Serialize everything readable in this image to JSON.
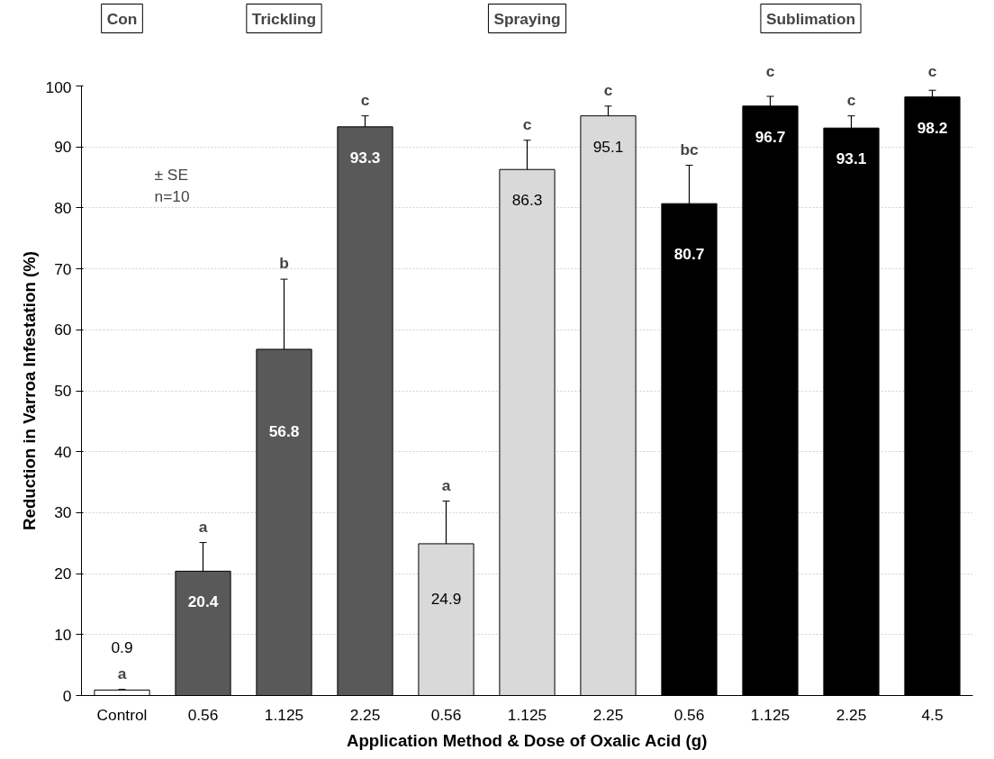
{
  "chart_data": {
    "type": "bar",
    "xlabel": "Application Method & Dose of Oxalic Acid (g)",
    "ylabel": "Reduction in Varroa Infestation (%)",
    "categories": [
      "Control",
      "0.56",
      "1.125",
      "2.25",
      "0.56",
      "1.125",
      "2.25",
      "0.56",
      "1.125",
      "2.25",
      "4.5"
    ],
    "values": [
      0.9,
      20.4,
      56.8,
      93.3,
      24.9,
      86.3,
      95.1,
      80.7,
      96.7,
      93.1,
      98.2
    ],
    "errors": [
      0.1,
      4.7,
      11.5,
      1.8,
      7.0,
      4.8,
      1.6,
      6.3,
      1.6,
      2.0,
      1.1
    ],
    "colors": [
      "#ffffff",
      "#595959",
      "#595959",
      "#595959",
      "#d9d9d9",
      "#d9d9d9",
      "#d9d9d9",
      "#000000",
      "#000000",
      "#000000",
      "#000000"
    ],
    "data_labels": true,
    "ylim": [
      0,
      100
    ],
    "yticks": [
      0,
      10,
      20,
      30,
      40,
      50,
      60,
      70,
      80,
      90,
      100
    ],
    "grid": "y",
    "legend": false,
    "annotations": [
      "Con",
      "Trickling",
      "Spraying",
      "Sublimation",
      "± SE\nn=10",
      "a",
      "a",
      "b",
      "c",
      "a",
      "c",
      "c",
      "bc",
      "c",
      "c",
      "c"
    ]
  }
}
